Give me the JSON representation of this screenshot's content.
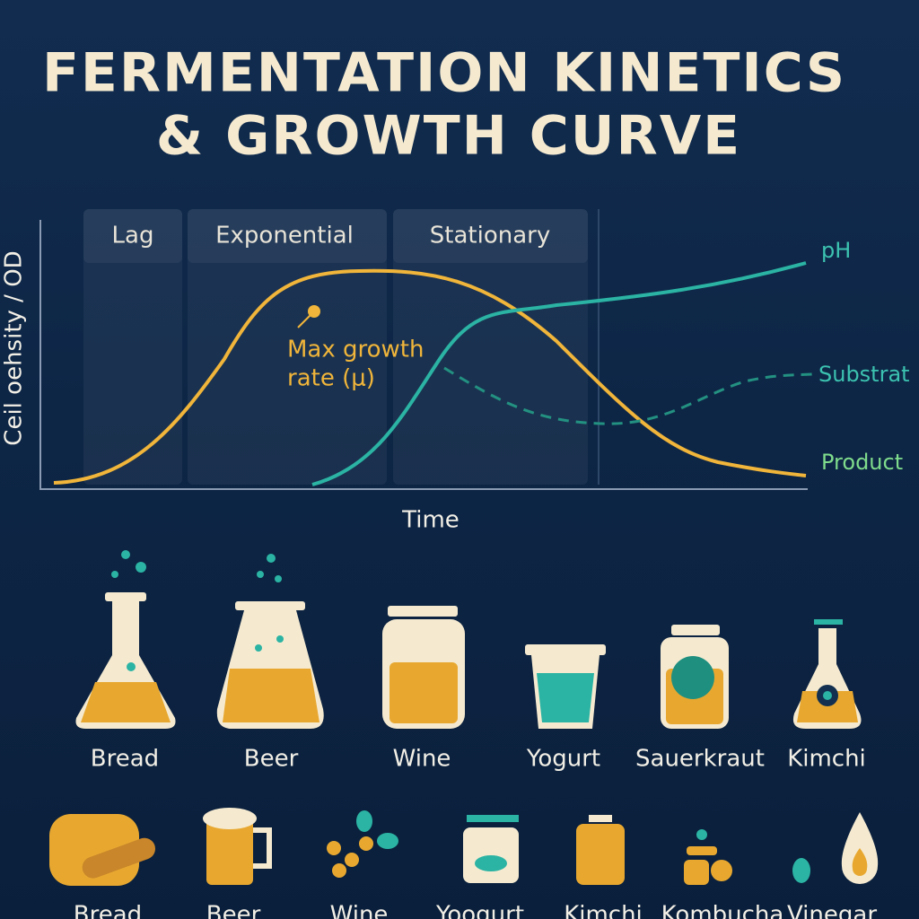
{
  "header": {
    "title_lines": [
      "FERMENTATION KINETICS",
      "& GROWTH CURVE"
    ]
  },
  "growth_chart": {
    "phases": [
      "Lag",
      "Exponential",
      "Stationary"
    ],
    "y_axis_label": "Ceil oehsity / OD",
    "x_axis_label": "Time",
    "curve_labels": [
      "pH",
      "Substrat",
      "Product"
    ],
    "annotation_lines": [
      "Max growth",
      "rate (μ)"
    ]
  },
  "products": {
    "row1": [
      "Bread",
      "Beer",
      "Wine",
      "Yogurt",
      "Sauerkraut",
      "Kimchi"
    ],
    "row2": [
      "Bread",
      "Beer",
      "Wine",
      "Yoogurt",
      "Kimchi",
      "Kombucha",
      "Vinegar"
    ]
  }
}
